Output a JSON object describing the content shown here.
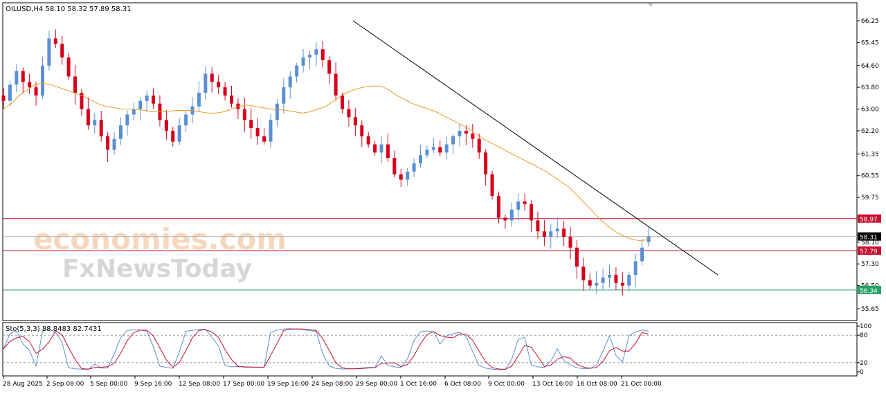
{
  "header": {
    "symbol_line": "OILUSD,H4  58.10 58.32 57.89 58.31"
  },
  "watermark": {
    "line1": "economies.com",
    "line2": "FxNewsToday"
  },
  "indicator": {
    "label": "Sto(5,3,3) 88.8483 82.7431",
    "levels": [
      80,
      20
    ]
  },
  "price_axis": {
    "ticks": [
      "66.25",
      "65.45",
      "64.60",
      "63.80",
      "63.00",
      "62.20",
      "61.35",
      "60.55",
      "59.75",
      "58.10",
      "57.30",
      "56.50",
      "55.65"
    ],
    "markers": [
      {
        "value": "58.97",
        "color": "#c8102e"
      },
      {
        "value": "58.31",
        "color": "#000000"
      },
      {
        "value": "57.79",
        "color": "#c8102e"
      },
      {
        "value": "56.34",
        "color": "#26a269"
      }
    ]
  },
  "stoch_axis": {
    "ticks": [
      "100",
      "80",
      "20",
      "0"
    ]
  },
  "time_axis": {
    "ticks": [
      "28 Aug 2025",
      "2 Sep 08:00",
      "5 Sep 00:00",
      "9 Sep 16:00",
      "12 Sep 08:00",
      "17 Sep 00:00",
      "19 Sep 16:00",
      "24 Sep 08:00",
      "29 Sep 00:00",
      "1 Oct 16:00",
      "6 Oct 08:00",
      "9 Oct 00:00",
      "13 Oct 16:00",
      "16 Oct 08:00",
      "21 Oct 00:00"
    ]
  },
  "colors": {
    "bull": "#5b8fd4",
    "bear": "#d6001c",
    "ma": "#e69a28",
    "stoch_main": "#5b8fd4",
    "stoch_signal": "#c8102e",
    "trendline": "#000000",
    "resistance": "#c8102e",
    "support": "#26a269"
  },
  "chart_data": {
    "type": "candlestick",
    "symbol": "OILUSD",
    "timeframe": "H4",
    "ylim": [
      55.65,
      66.65
    ],
    "ohlc_last": {
      "open": 58.1,
      "high": 58.32,
      "low": 57.89,
      "close": 58.31
    },
    "horizontal_lines": [
      58.97,
      58.31,
      57.79,
      56.34
    ],
    "trendline": {
      "from": {
        "date": "26 Sep 2025",
        "price": 66.25
      },
      "to": {
        "date": "28 Oct 2025",
        "price": 56.9
      }
    },
    "close_series": [
      63.3,
      63.9,
      64.4,
      64.0,
      63.8,
      63.5,
      64.6,
      65.6,
      65.4,
      64.9,
      64.2,
      63.6,
      63.0,
      62.4,
      62.6,
      62.0,
      61.5,
      61.9,
      62.4,
      62.8,
      63.0,
      63.3,
      63.5,
      63.2,
      62.6,
      62.2,
      61.8,
      62.4,
      62.8,
      63.1,
      63.6,
      64.3,
      64.0,
      63.8,
      63.5,
      63.2,
      63.0,
      62.6,
      62.3,
      62.0,
      61.8,
      62.6,
      63.2,
      63.8,
      64.2,
      64.6,
      64.9,
      65.0,
      65.2,
      64.8,
      64.3,
      63.5,
      63.0,
      62.7,
      62.4,
      62.0,
      61.7,
      61.4,
      61.7,
      61.2,
      60.6,
      60.4,
      60.7,
      61.0,
      61.3,
      61.5,
      61.6,
      61.4,
      61.7,
      62.0,
      62.2,
      62.1,
      61.9,
      61.4,
      60.6,
      59.8,
      59.0,
      58.9,
      59.3,
      59.6,
      59.5,
      58.9,
      58.5,
      58.3,
      58.5,
      58.6,
      58.3,
      57.9,
      57.2,
      56.7,
      56.5,
      56.6,
      56.8,
      56.9,
      56.6,
      56.5,
      56.9,
      57.4,
      57.9,
      58.31
    ],
    "moving_average": [
      63.0,
      63.2,
      63.5,
      63.7,
      63.9,
      63.95,
      63.9,
      63.8,
      63.7,
      63.6,
      63.5,
      63.35,
      63.2,
      63.1,
      63.05,
      63.0,
      63.0,
      62.98,
      62.95,
      62.9,
      62.9,
      62.92,
      62.95,
      62.95,
      62.95,
      62.9,
      62.85,
      62.85,
      62.9,
      63.0,
      63.1,
      63.15,
      63.1,
      63.05,
      63.0,
      62.98,
      62.95,
      62.9,
      62.85,
      62.9,
      63.0,
      63.1,
      63.3,
      63.5,
      63.65,
      63.75,
      63.82,
      63.85,
      63.85,
      63.7,
      63.5,
      63.35,
      63.2,
      63.1,
      63.0,
      62.9,
      62.75,
      62.6,
      62.45,
      62.3,
      62.1,
      61.9,
      61.75,
      61.6,
      61.45,
      61.3,
      61.15,
      61.0,
      60.85,
      60.7,
      60.5,
      60.3,
      60.1,
      59.8,
      59.5,
      59.2,
      58.9,
      58.65,
      58.45,
      58.3,
      58.2,
      58.15,
      58.2
    ],
    "stochastic": {
      "k": 88.8483,
      "d": 82.7431,
      "params": [
        5,
        3,
        3
      ],
      "levels": [
        80,
        20
      ]
    }
  }
}
